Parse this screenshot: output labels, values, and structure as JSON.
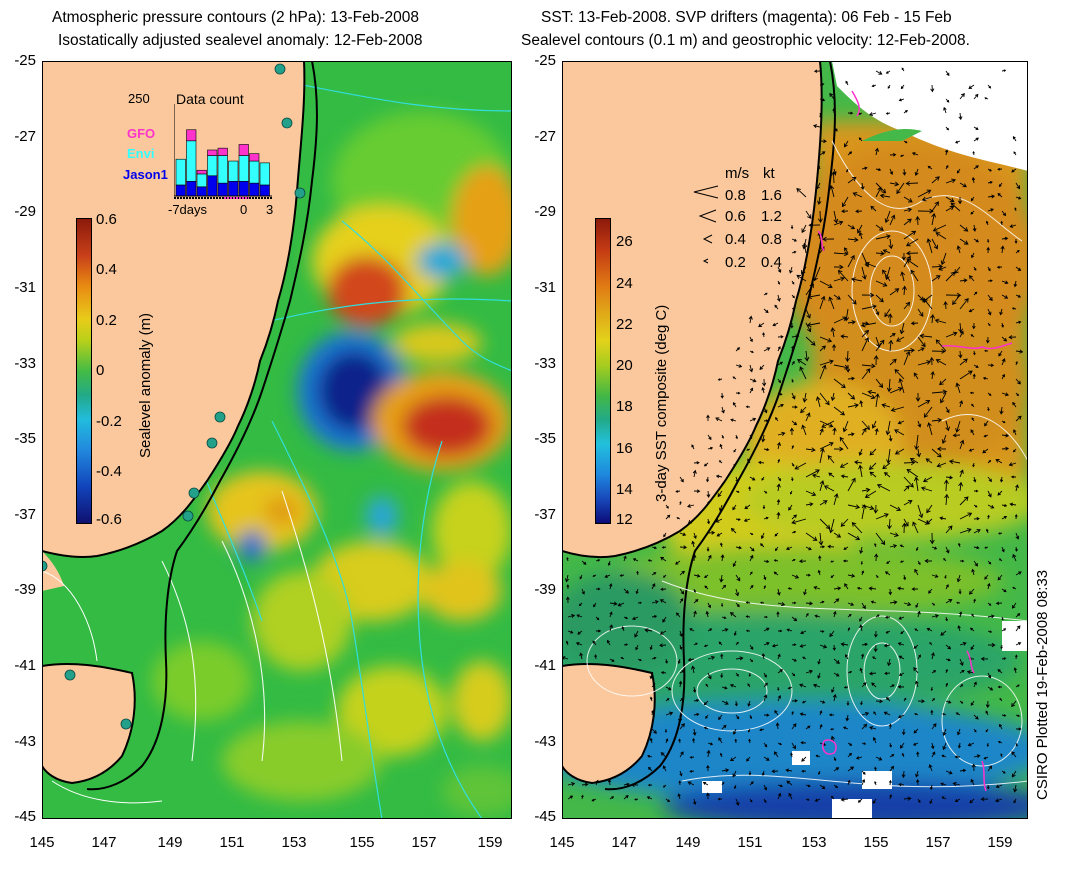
{
  "left_panel": {
    "title_line1": "Atmospheric pressure contours (2 hPa): 13-Feb-2008",
    "title_line2": "Isostatically adjusted sealevel anomaly: 12-Feb-2008",
    "colorbar": {
      "label": "Sealevel anomaly (m)",
      "ticks": [
        "0.6",
        "0.4",
        "0.2",
        "0",
        "-0.2",
        "-0.4",
        "-0.6"
      ],
      "range": [
        -0.6,
        0.6
      ]
    },
    "data_count_inset": {
      "title": "Data count",
      "ymax_label": "250",
      "legend": [
        {
          "name": "GFO",
          "color": "#ff33cc"
        },
        {
          "name": "Envi",
          "color": "#33ffff"
        },
        {
          "name": "Jason1",
          "color": "#0000ee"
        }
      ],
      "x_labels": [
        "-7days",
        "0",
        "3"
      ],
      "bars": [
        {
          "day": -7,
          "jason1": 30,
          "envi": 70,
          "gfo": 0
        },
        {
          "day": -6,
          "jason1": 40,
          "envi": 110,
          "gfo": 30
        },
        {
          "day": -5,
          "jason1": 25,
          "envi": 35,
          "gfo": 10
        },
        {
          "day": -4,
          "jason1": 55,
          "envi": 55,
          "gfo": 15
        },
        {
          "day": -3,
          "jason1": 35,
          "envi": 75,
          "gfo": 20
        },
        {
          "day": -2,
          "jason1": 40,
          "envi": 55,
          "gfo": 0
        },
        {
          "day": -1,
          "jason1": 40,
          "envi": 70,
          "gfo": 30
        },
        {
          "day": 0,
          "jason1": 35,
          "envi": 60,
          "gfo": 20
        },
        {
          "day": 1,
          "jason1": 30,
          "envi": 60,
          "gfo": 0
        }
      ]
    }
  },
  "right_panel": {
    "title_line1": "SST: 13-Feb-2008. SVP drifters (magenta): 06 Feb - 15 Feb",
    "title_line2": "Sealevel contours (0.1 m) and geostrophic velocity: 12-Feb-2008.",
    "colorbar": {
      "label": "3-day SST composite (deg C)",
      "ticks": [
        "26",
        "24",
        "22",
        "20",
        "18",
        "16",
        "14",
        "12"
      ],
      "range": [
        12,
        27
      ]
    },
    "velocity_legend": {
      "header_ms": "m/s",
      "header_kt": "kt",
      "rows": [
        {
          "ms": "0.8",
          "kt": "1.6"
        },
        {
          "ms": "0.6",
          "kt": "1.2"
        },
        {
          "ms": "0.4",
          "kt": "0.8"
        },
        {
          "ms": "0.2",
          "kt": "0.4"
        }
      ]
    }
  },
  "axes": {
    "y_labels": [
      "-25",
      "-27",
      "-29",
      "-31",
      "-33",
      "-35",
      "-37",
      "-39",
      "-41",
      "-43",
      "-45"
    ],
    "x_labels": [
      "145",
      "147",
      "149",
      "151",
      "153",
      "155",
      "157",
      "159"
    ]
  },
  "credit": "CSIRO Plotted 19-Feb-2008 08:33",
  "colors": {
    "land": "#fac89c",
    "coastline": "#000000",
    "shelf_contour": "#000000",
    "pressure_contour": "#33dddd",
    "sealevel_contour": "#ffffff",
    "drifter": "#ff33cc"
  }
}
